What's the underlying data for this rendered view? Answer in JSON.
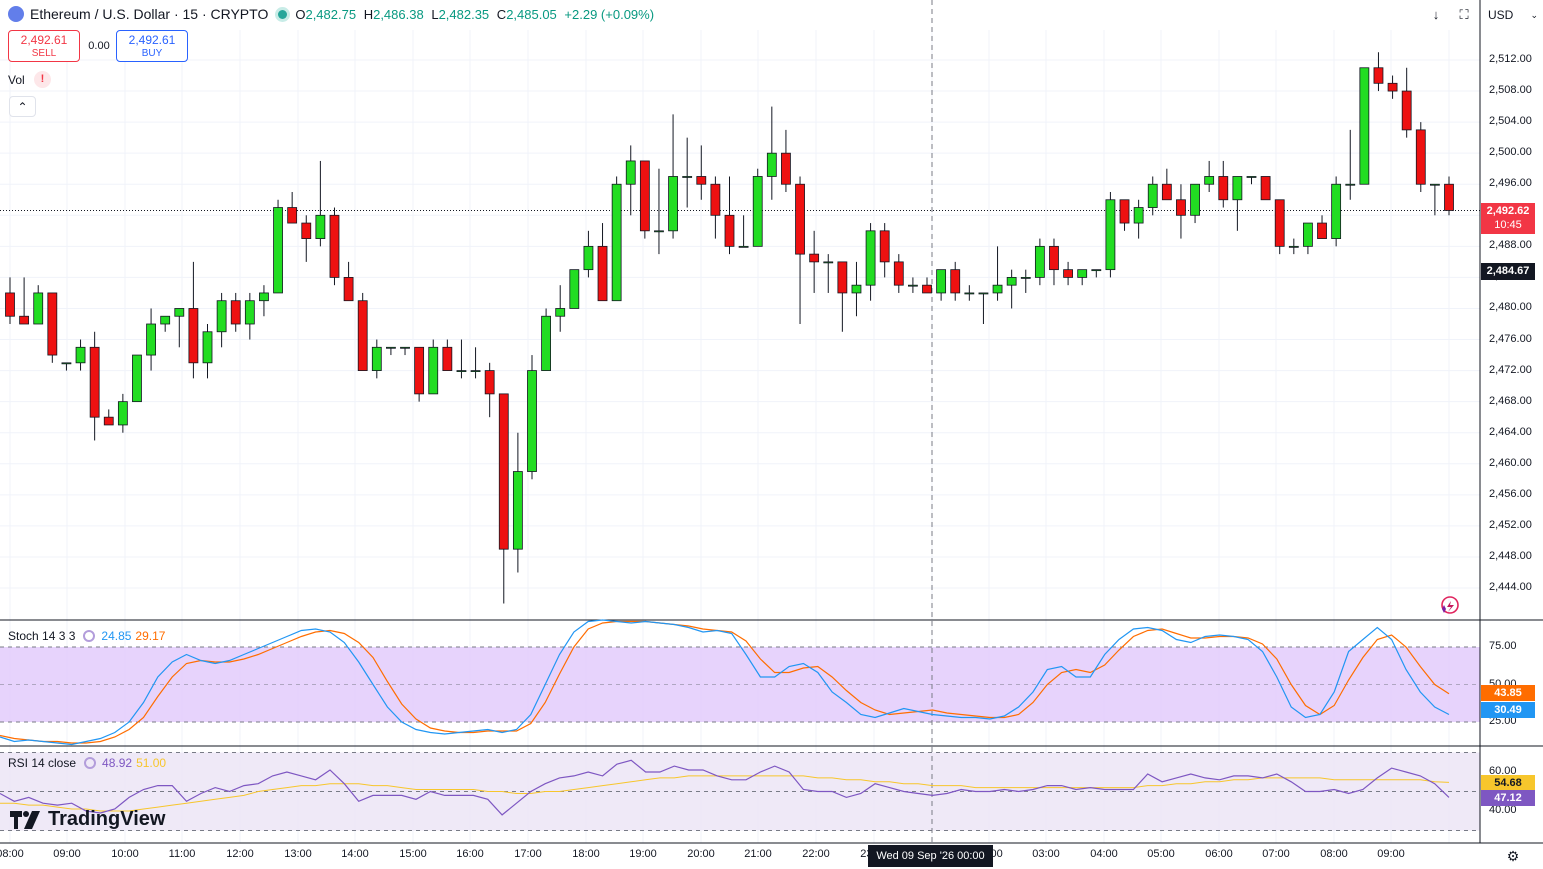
{
  "header": {
    "symbol": "Ethereum / U.S. Dollar · 15 · CRYPTO",
    "open_label": "O",
    "open": "2,482.75",
    "high_label": "H",
    "high": "2,486.38",
    "low_label": "L",
    "low": "2,482.35",
    "close_label": "C",
    "close": "2,485.05",
    "change": "+2.29 (+0.09%)"
  },
  "trade": {
    "sell_price": "2,492.61",
    "sell_label": "SELL",
    "spread": "0.00",
    "buy_price": "2,492.61",
    "buy_label": "BUY"
  },
  "volume_label": "Vol",
  "currency": "USD",
  "price_axis": {
    "ticks": [
      "2,512.00",
      "2,508.00",
      "2,504.00",
      "2,500.00",
      "2,496.00",
      "2,492.00",
      "2,488.00",
      "2,484.00",
      "2,480.00",
      "2,476.00",
      "2,472.00",
      "2,468.00",
      "2,464.00",
      "2,460.00",
      "2,456.00",
      "2,452.00",
      "2,448.00",
      "2,444.00"
    ],
    "current_price": "2,492.62",
    "countdown": "10:45",
    "crosshair_price": "2,484.67"
  },
  "time_axis": {
    "ticks": [
      "08:00",
      "09:00",
      "10:00",
      "11:00",
      "12:00",
      "13:00",
      "14:00",
      "15:00",
      "16:00",
      "17:00",
      "18:00",
      "19:00",
      "20:00",
      "21:00",
      "22:00",
      "23:00",
      "",
      "02:00",
      "03:00",
      "04:00",
      "05:00",
      "06:00",
      "07:00",
      "08:00",
      "09:00"
    ],
    "crosshair_label": "Wed 09 Sep '26   00:00"
  },
  "stoch": {
    "label": "Stoch 14 3 3",
    "k": "24.85",
    "d": "29.17",
    "ticks": [
      "75.00",
      "50.00",
      "25.00"
    ],
    "tag_d": "43.85",
    "tag_k": "30.49"
  },
  "rsi": {
    "label": "RSI 14 close",
    "value": "48.92",
    "ma": "51.00",
    "ticks": [
      "60.00",
      "40.00"
    ],
    "tag_ma": "54.68",
    "tag_rsi": "47.12"
  },
  "logo": "TradingView",
  "colors": {
    "up": "#22dd22",
    "down": "#ee1111",
    "stoch_k": "#2196f3",
    "stoch_d": "#ff6d00",
    "rsi": "#7e57c2",
    "rsi_ma": "#f7c62c",
    "band": "#e1c8fb"
  },
  "icons": [
    "ethereum-icon",
    "live-dot-icon",
    "alert-icon",
    "chevron-up-icon",
    "download-icon",
    "fullscreen-icon",
    "chevron-down-icon",
    "cycle-icon",
    "settings-icon",
    "sparkle-icon"
  ],
  "chart_data": {
    "type": "candlestick",
    "candles": [
      [
        2482.0,
        2484.0,
        2478.0,
        2479.0
      ],
      [
        2479.0,
        2484.0,
        2478.0,
        2478.0
      ],
      [
        2478.0,
        2483.0,
        2478.0,
        2482.0
      ],
      [
        2482.0,
        2482.0,
        2473.0,
        2474.0
      ],
      [
        2473.0,
        2473.0,
        2472.0,
        2473.0
      ],
      [
        2473.0,
        2476.0,
        2472.0,
        2475.0
      ],
      [
        2475.0,
        2477.0,
        2463.0,
        2466.0
      ],
      [
        2466.0,
        2467.0,
        2465.0,
        2465.0
      ],
      [
        2465.0,
        2469.0,
        2464.0,
        2468.0
      ],
      [
        2468.0,
        2474.0,
        2468.0,
        2474.0
      ],
      [
        2474.0,
        2480.0,
        2472.0,
        2478.0
      ],
      [
        2478.0,
        2479.0,
        2477.0,
        2479.0
      ],
      [
        2479.0,
        2480.0,
        2475.0,
        2480.0
      ],
      [
        2480.0,
        2486.0,
        2471.0,
        2473.0
      ],
      [
        2473.0,
        2478.0,
        2471.0,
        2477.0
      ],
      [
        2477.0,
        2482.0,
        2475.0,
        2481.0
      ],
      [
        2481.0,
        2482.0,
        2477.0,
        2478.0
      ],
      [
        2478.0,
        2482.0,
        2476.0,
        2481.0
      ],
      [
        2481.0,
        2483.0,
        2479.0,
        2482.0
      ],
      [
        2482.0,
        2494.0,
        2482.0,
        2493.0
      ],
      [
        2493.0,
        2495.0,
        2491.0,
        2491.0
      ],
      [
        2491.0,
        2492.0,
        2486.0,
        2489.0
      ],
      [
        2489.0,
        2499.0,
        2488.0,
        2492.0
      ],
      [
        2492.0,
        2493.0,
        2483.0,
        2484.0
      ],
      [
        2484.0,
        2486.0,
        2481.0,
        2481.0
      ],
      [
        2481.0,
        2482.0,
        2472.0,
        2472.0
      ],
      [
        2472.0,
        2476.0,
        2471.0,
        2475.0
      ],
      [
        2475.0,
        2475.0,
        2474.0,
        2475.0
      ],
      [
        2475.0,
        2475.0,
        2474.0,
        2475.0
      ],
      [
        2475.0,
        2475.0,
        2468.0,
        2469.0
      ],
      [
        2469.0,
        2476.0,
        2469.0,
        2475.0
      ],
      [
        2475.0,
        2476.0,
        2472.0,
        2472.0
      ],
      [
        2472.0,
        2476.0,
        2471.0,
        2472.0
      ],
      [
        2472.0,
        2475.0,
        2471.0,
        2472.0
      ],
      [
        2472.0,
        2473.0,
        2466.0,
        2469.0
      ],
      [
        2469.0,
        2469.0,
        2442.0,
        2449.0
      ],
      [
        2449.0,
        2464.0,
        2446.0,
        2459.0
      ],
      [
        2459.0,
        2474.0,
        2458.0,
        2472.0
      ],
      [
        2472.0,
        2480.0,
        2472.0,
        2479.0
      ],
      [
        2479.0,
        2483.0,
        2477.0,
        2480.0
      ],
      [
        2480.0,
        2485.0,
        2480.0,
        2485.0
      ],
      [
        2485.0,
        2490.0,
        2484.0,
        2488.0
      ],
      [
        2488.0,
        2491.0,
        2481.0,
        2481.0
      ],
      [
        2481.0,
        2497.0,
        2481.0,
        2496.0
      ],
      [
        2496.0,
        2501.0,
        2492.0,
        2499.0
      ],
      [
        2499.0,
        2499.0,
        2489.0,
        2490.0
      ],
      [
        2490.0,
        2498.0,
        2487.0,
        2490.0
      ],
      [
        2490.0,
        2505.0,
        2489.0,
        2497.0
      ],
      [
        2497.0,
        2502.0,
        2493.0,
        2497.0
      ],
      [
        2497.0,
        2501.0,
        2494.0,
        2496.0
      ],
      [
        2496.0,
        2497.0,
        2489.0,
        2492.0
      ],
      [
        2492.0,
        2497.0,
        2487.0,
        2488.0
      ],
      [
        2488.0,
        2492.0,
        2488.0,
        2488.0
      ],
      [
        2488.0,
        2498.0,
        2488.0,
        2497.0
      ],
      [
        2497.0,
        2506.0,
        2494.0,
        2500.0
      ],
      [
        2500.0,
        2503.0,
        2495.0,
        2496.0
      ],
      [
        2496.0,
        2497.0,
        2478.0,
        2487.0
      ],
      [
        2487.0,
        2490.0,
        2482.0,
        2486.0
      ],
      [
        2486.0,
        2487.0,
        2482.0,
        2486.0
      ],
      [
        2486.0,
        2486.0,
        2477.0,
        2482.0
      ],
      [
        2482.0,
        2486.0,
        2479.0,
        2483.0
      ],
      [
        2483.0,
        2491.0,
        2481.0,
        2490.0
      ],
      [
        2490.0,
        2491.0,
        2484.0,
        2486.0
      ],
      [
        2486.0,
        2487.0,
        2482.0,
        2483.0
      ],
      [
        2483.0,
        2484.0,
        2482.0,
        2483.0
      ],
      [
        2483.0,
        2484.0,
        2482.0,
        2482.0
      ],
      [
        2482.0,
        2485.0,
        2481.0,
        2485.0
      ],
      [
        2485.0,
        2486.0,
        2481.0,
        2482.0
      ],
      [
        2482.0,
        2483.0,
        2481.0,
        2482.0
      ],
      [
        2482.0,
        2482.0,
        2478.0,
        2482.0
      ],
      [
        2482.0,
        2488.0,
        2481.0,
        2483.0
      ],
      [
        2483.0,
        2485.0,
        2480.0,
        2484.0
      ],
      [
        2484.0,
        2485.0,
        2482.0,
        2484.0
      ],
      [
        2484.0,
        2489.0,
        2483.0,
        2488.0
      ],
      [
        2488.0,
        2489.0,
        2483.0,
        2485.0
      ],
      [
        2485.0,
        2486.0,
        2483.0,
        2484.0
      ],
      [
        2484.0,
        2485.0,
        2483.0,
        2485.0
      ],
      [
        2485.0,
        2485.0,
        2484.0,
        2485.0
      ],
      [
        2485.0,
        2495.0,
        2484.0,
        2494.0
      ],
      [
        2494.0,
        2494.0,
        2490.0,
        2491.0
      ],
      [
        2491.0,
        2494.0,
        2489.0,
        2493.0
      ],
      [
        2493.0,
        2497.0,
        2492.0,
        2496.0
      ],
      [
        2496.0,
        2498.0,
        2494.0,
        2494.0
      ],
      [
        2494.0,
        2496.0,
        2489.0,
        2492.0
      ],
      [
        2492.0,
        2496.0,
        2491.0,
        2496.0
      ],
      [
        2496.0,
        2499.0,
        2495.0,
        2497.0
      ],
      [
        2497.0,
        2499.0,
        2493.0,
        2494.0
      ],
      [
        2494.0,
        2497.0,
        2490.0,
        2497.0
      ],
      [
        2497.0,
        2497.0,
        2496.0,
        2497.0
      ],
      [
        2497.0,
        2497.0,
        2494.0,
        2494.0
      ],
      [
        2494.0,
        2494.0,
        2487.0,
        2488.0
      ],
      [
        2488.0,
        2489.0,
        2487.0,
        2488.0
      ],
      [
        2488.0,
        2491.0,
        2487.0,
        2491.0
      ],
      [
        2491.0,
        2492.0,
        2489.0,
        2489.0
      ],
      [
        2489.0,
        2497.0,
        2488.0,
        2496.0
      ],
      [
        2496.0,
        2503.0,
        2494.0,
        2496.0
      ],
      [
        2496.0,
        2511.0,
        2496.0,
        2511.0
      ],
      [
        2511.0,
        2513.0,
        2508.0,
        2509.0
      ],
      [
        2509.0,
        2510.0,
        2507.0,
        2508.0
      ],
      [
        2508.0,
        2511.0,
        2502.0,
        2503.0
      ],
      [
        2503.0,
        2504.0,
        2495.0,
        2496.0
      ],
      [
        2496.0,
        2496.0,
        2492.0,
        2496.0
      ],
      [
        2496.0,
        2497.0,
        2492.0,
        2492.62
      ]
    ],
    "ylim": [
      2441.0,
      2514.0
    ],
    "stoch_k": [
      15,
      12,
      13,
      12,
      11,
      10,
      12,
      14,
      18,
      25,
      38,
      55,
      65,
      70,
      66,
      64,
      66,
      70,
      74,
      78,
      82,
      86,
      87,
      85,
      78,
      65,
      50,
      35,
      25,
      20,
      18,
      17,
      18,
      19,
      20,
      18,
      20,
      30,
      50,
      70,
      85,
      92,
      93,
      92,
      91,
      92,
      91,
      90,
      88,
      85,
      86,
      84,
      70,
      55,
      55,
      62,
      64,
      58,
      45,
      38,
      30,
      28,
      31,
      34,
      32,
      30,
      29,
      28,
      28,
      27,
      29,
      35,
      45,
      60,
      62,
      55,
      55,
      70,
      80,
      87,
      88,
      86,
      80,
      78,
      82,
      83,
      82,
      80,
      72,
      55,
      35,
      28,
      30,
      45,
      72,
      80,
      88,
      80,
      60,
      45,
      35,
      30
    ],
    "stoch_d": [
      16,
      14,
      13,
      12,
      12,
      11,
      11,
      12,
      15,
      20,
      28,
      42,
      55,
      64,
      66,
      65,
      65,
      67,
      70,
      74,
      78,
      82,
      85,
      86,
      84,
      78,
      68,
      52,
      37,
      27,
      21,
      19,
      18,
      18,
      19,
      19,
      19,
      24,
      38,
      57,
      75,
      87,
      91,
      92,
      92,
      92,
      91,
      90,
      89,
      87,
      86,
      85,
      79,
      67,
      58,
      58,
      61,
      62,
      55,
      46,
      38,
      33,
      30,
      31,
      32,
      33,
      31,
      30,
      29,
      28,
      28,
      30,
      38,
      50,
      58,
      60,
      58,
      63,
      73,
      82,
      86,
      87,
      84,
      81,
      81,
      82,
      82,
      81,
      77,
      67,
      50,
      36,
      30,
      36,
      53,
      68,
      80,
      83,
      75,
      62,
      50,
      43.85
    ],
    "rsi": [
      49,
      45,
      47,
      44,
      43,
      44,
      40,
      39,
      41,
      47,
      51,
      53,
      53,
      45,
      49,
      52,
      50,
      53,
      54,
      58,
      60,
      58,
      56,
      61,
      54,
      45,
      48,
      48,
      48,
      46,
      50,
      48,
      48,
      48,
      46,
      38,
      44,
      50,
      54,
      57,
      58,
      60,
      58,
      64,
      66,
      60,
      60,
      63,
      61,
      61,
      58,
      56,
      56,
      60,
      63,
      60,
      51,
      50,
      50,
      47,
      49,
      54,
      52,
      50,
      49,
      48,
      49,
      51,
      50,
      50,
      51,
      50,
      51,
      53,
      53,
      51,
      52,
      51,
      51,
      51,
      59,
      55,
      57,
      59,
      57,
      56,
      58,
      58,
      57,
      59,
      55,
      50,
      50,
      51,
      49,
      51,
      57,
      62,
      60,
      58,
      54,
      47
    ],
    "rsi_ma": [
      44,
      44,
      43,
      43,
      42,
      41,
      41,
      40,
      40,
      40,
      41,
      42,
      43,
      44,
      45,
      46,
      47,
      48,
      50,
      51,
      52,
      53,
      53,
      54,
      54,
      54,
      53,
      53,
      52,
      51,
      51,
      51,
      51,
      51,
      50,
      50,
      49,
      49,
      50,
      50,
      51,
      52,
      53,
      54,
      55,
      56,
      57,
      57,
      58,
      58,
      58,
      58,
      58,
      58,
      58,
      58,
      58,
      57,
      57,
      56,
      56,
      55,
      55,
      54,
      54,
      53,
      53,
      53,
      52,
      52,
      52,
      52,
      52,
      52,
      52,
      52,
      52,
      52,
      52,
      52,
      53,
      53,
      54,
      54,
      55,
      55,
      56,
      56,
      57,
      57,
      57,
      57,
      57,
      56,
      56,
      56,
      56,
      56,
      56,
      56,
      55,
      54.68
    ]
  }
}
